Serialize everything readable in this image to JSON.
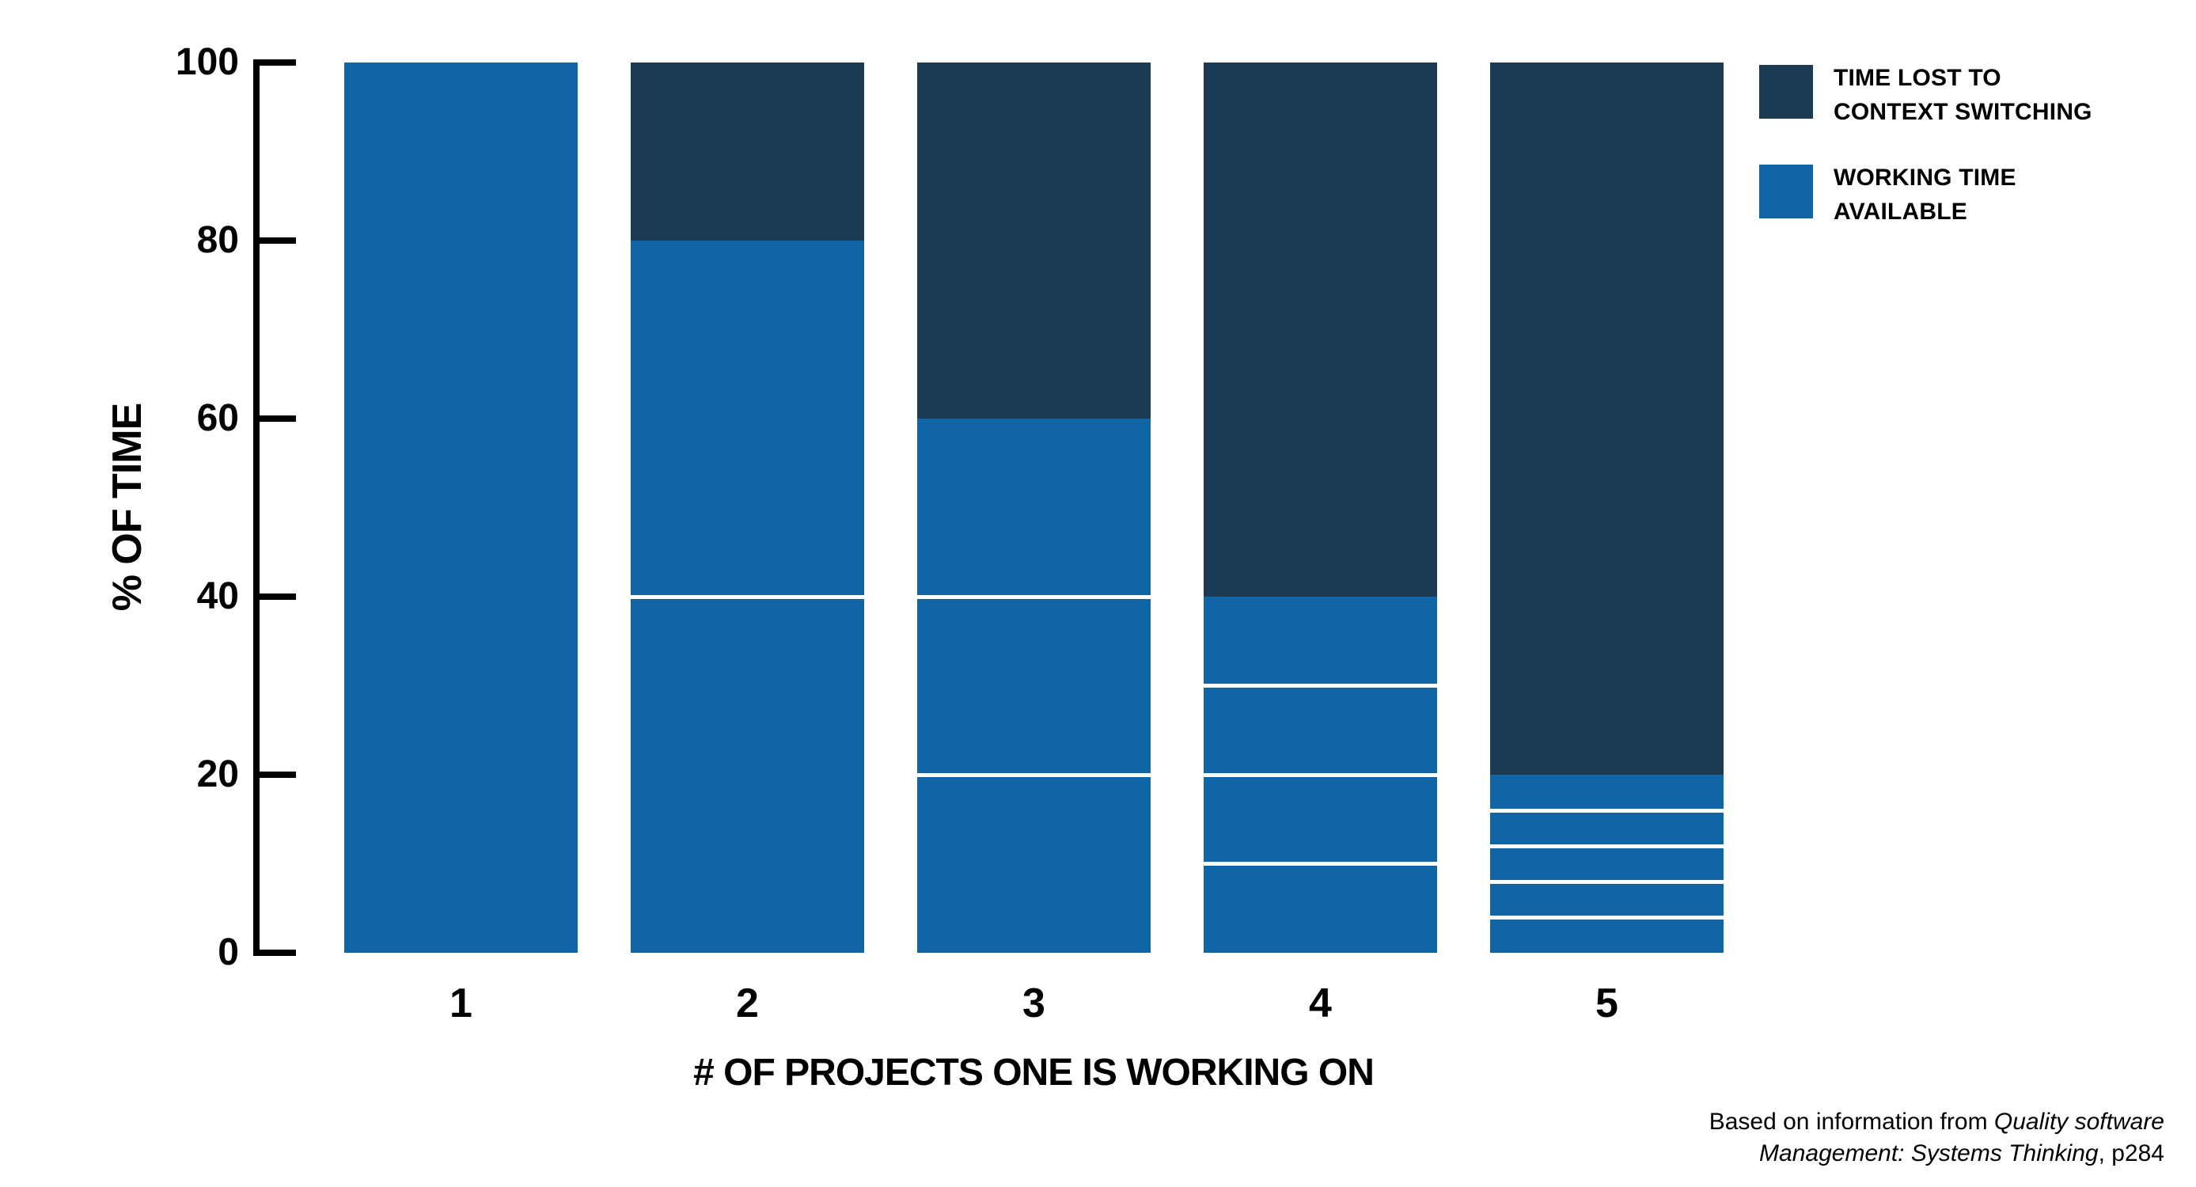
{
  "chart_data": {
    "type": "bar",
    "stacked": true,
    "title": "",
    "xlabel": "# OF PROJECTS ONE IS WORKING ON",
    "ylabel": "% OF TIME",
    "categories": [
      "1",
      "2",
      "3",
      "4",
      "5"
    ],
    "yticks": [
      0,
      20,
      40,
      60,
      80,
      100
    ],
    "ylim": [
      0,
      100
    ],
    "grid": false,
    "legend_position": "top-right",
    "series": [
      {
        "name": "WORKING TIME AVAILABLE",
        "color": "#0F65A5",
        "values": [
          100,
          80,
          60,
          40,
          20
        ]
      },
      {
        "name": "TIME LOST TO CONTEXT SWITCHING",
        "color": "#1B3A54",
        "values": [
          0,
          20,
          40,
          60,
          80
        ]
      }
    ],
    "working_time_subdivisions": [
      1,
      2,
      3,
      4,
      5
    ],
    "divider_color": "#FFFFFF"
  },
  "legend": {
    "items": [
      {
        "label": "TIME LOST TO\nCONTEXT SWITCHING",
        "color": "#1B3A54"
      },
      {
        "label": "WORKING TIME\nAVAILABLE",
        "color": "#0F65A5"
      }
    ]
  },
  "attribution": {
    "line1_regular": "Based on information from ",
    "line1_italic": "Quality software",
    "line2_italic": "Management: Systems Thinking",
    "line2_regular": ", p284"
  }
}
